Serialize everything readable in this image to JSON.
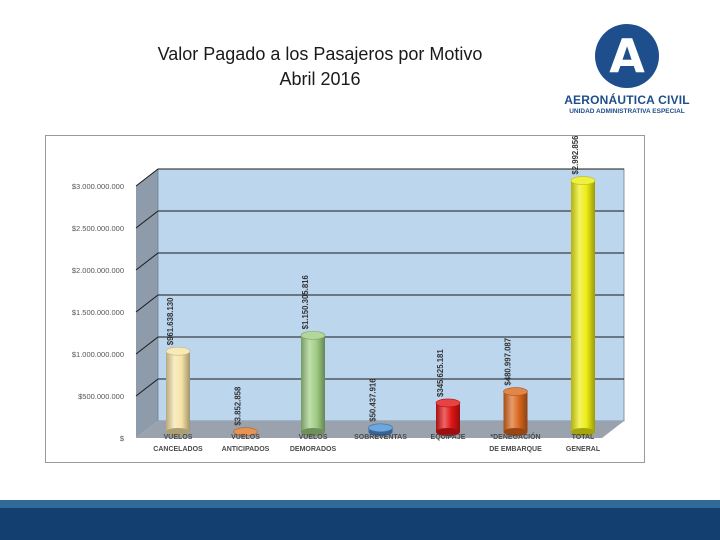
{
  "header": {
    "title_line1": "Valor Pagado a los Pasajeros  por Motivo",
    "title_line2": "Abril 2016"
  },
  "logo": {
    "letter": "A",
    "name": "AERONÁUTICA CIVIL",
    "subtitle": "UNIDAD ADMINISTRATIVA ESPECIAL",
    "color": "#1f4e8c"
  },
  "chart_data": {
    "type": "bar",
    "title": "Valor Pagado a los Pasajeros  por Motivo Abril 2016",
    "ylim": [
      0,
      3000000000
    ],
    "yticks": [
      {
        "value": 0,
        "label": "$"
      },
      {
        "value": 500000000,
        "label": "$500.000.000"
      },
      {
        "value": 1000000000,
        "label": "$1.000.000.000"
      },
      {
        "value": 1500000000,
        "label": "$1.500.000.000"
      },
      {
        "value": 2000000000,
        "label": "$2.000.000.000"
      },
      {
        "value": 2500000000,
        "label": "$2.500.000.000"
      },
      {
        "value": 3000000000,
        "label": "$3.000.000.000"
      }
    ],
    "categories": [
      {
        "line1": "VUELOS",
        "line2": "CANCELADOS"
      },
      {
        "line1": "VUELOS",
        "line2": "ANTICIPADOS"
      },
      {
        "line1": "VUELOS",
        "line2": "DEMORADOS"
      },
      {
        "line1": "SOBREVENTAS",
        "line2": ""
      },
      {
        "line1": "EQUIPAJE",
        "line2": ""
      },
      {
        "line1": "*DENEGACIÓN",
        "line2": "DE EMBARQUE"
      },
      {
        "line1": "TOTAL",
        "line2": "GENERAL"
      }
    ],
    "values": [
      961638130,
      3852858,
      1150305816,
      50437916,
      345625181,
      480997087,
      2992856988
    ],
    "value_labels": [
      "$961.638.130",
      "$3.852.858",
      "$1.150.305.816",
      "$50.437.916",
      "$345.625.181",
      "$480.997.087",
      "$2.992.856.988"
    ],
    "colors": [
      "#f6e3a6",
      "#e0782c",
      "#9fcc82",
      "#4a90d6",
      "#e11414",
      "#d9661c",
      "#ecec12"
    ]
  }
}
